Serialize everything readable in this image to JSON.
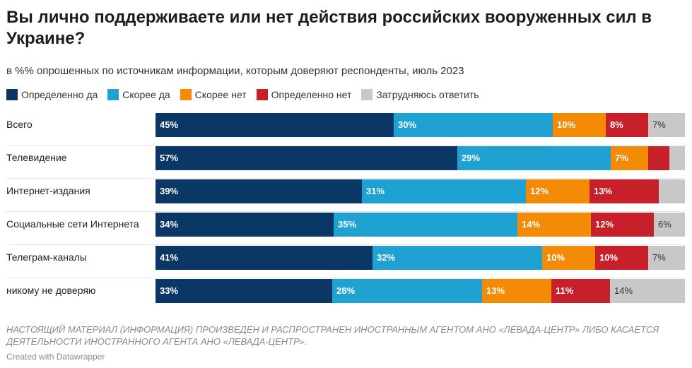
{
  "title": "Вы лично поддерживаете или нет действия российских вооруженных сил в Украине?",
  "subtitle": "в %% опрошенных по источникам информации, которым доверяют респонденты, июль 2023",
  "footnote": "НАСТОЯЩИЙ МАТЕРИАЛ (ИНФОРМАЦИЯ) ПРОИЗВЕДЕН И РАСПРОСТРАНЕН ИНОСТРАННЫМ АГЕНТОМ АНО «ЛЕВАДА-ЦЕНТР» ЛИБО КАСАЕТСЯ ДЕЯТЕЛЬНОСТИ ИНОСТРАННОГО АГЕНТА АНО «ЛЕВАДА-ЦЕНТР».",
  "credit": "Created with Datawrapper",
  "chart_data": {
    "type": "bar",
    "orientation": "horizontal",
    "stacked": "percent",
    "xlim": [
      0,
      100
    ],
    "legend_position": "top-left",
    "grid": false,
    "categories": [
      "Всего",
      "Телевидение",
      "Интернет-издания",
      "Социальные сети Интернета",
      "Телеграм-каналы",
      "никому не доверяю"
    ],
    "series": [
      {
        "name": "Определенно да",
        "color": "#0b3766",
        "label_dark": false,
        "values": [
          45,
          57,
          39,
          34,
          41,
          33
        ],
        "labels": [
          "45%",
          "57%",
          "39%",
          "34%",
          "41%",
          "33%"
        ]
      },
      {
        "name": "Скорее да",
        "color": "#1fa2d1",
        "label_dark": false,
        "values": [
          30,
          29,
          31,
          35,
          32,
          28
        ],
        "labels": [
          "30%",
          "29%",
          "31%",
          "35%",
          "32%",
          "28%"
        ]
      },
      {
        "name": "Скорее нет",
        "color": "#f48b06",
        "label_dark": false,
        "values": [
          10,
          7,
          12,
          14,
          10,
          13
        ],
        "labels": [
          "10%",
          "7%",
          "12%",
          "14%",
          "10%",
          "13%"
        ]
      },
      {
        "name": "Определенно нет",
        "color": "#c8202a",
        "label_dark": false,
        "values": [
          8,
          4,
          13,
          12,
          10,
          11
        ],
        "labels": [
          "8%",
          "",
          "13%",
          "12%",
          "10%",
          "11%"
        ]
      },
      {
        "name": "Затрудняюсь ответить",
        "color": "#c8c8c8",
        "label_dark": true,
        "values": [
          7,
          3,
          5,
          6,
          7,
          14
        ],
        "labels": [
          "7%",
          "",
          "",
          "6%",
          "7%",
          "14%"
        ]
      }
    ]
  }
}
